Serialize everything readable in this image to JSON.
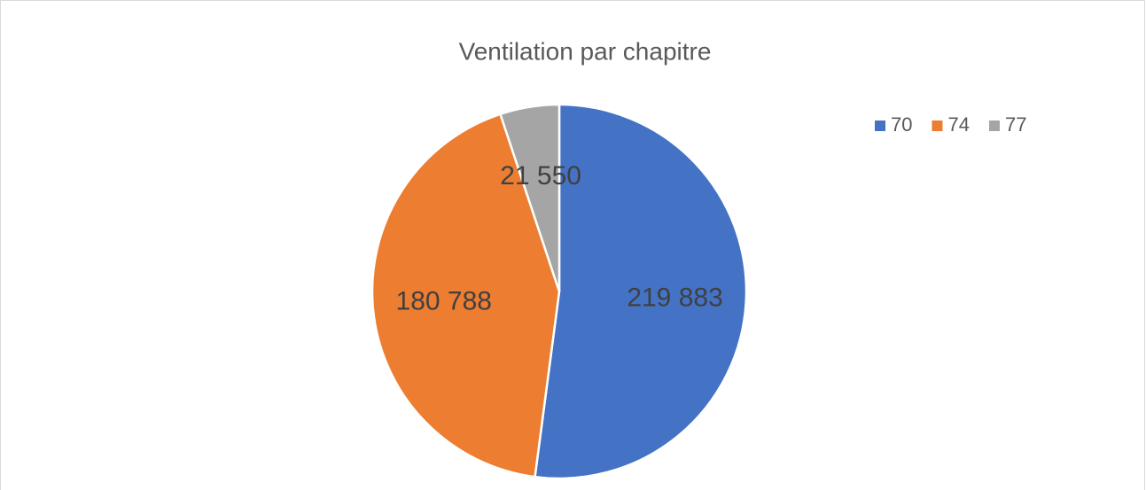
{
  "chart_data": {
    "type": "pie",
    "title": "Ventilation par chapitre",
    "categories": [
      "70",
      "74",
      "77"
    ],
    "values": [
      219883,
      180788,
      21550
    ],
    "value_labels": [
      "219 883",
      "180 788",
      "21 550"
    ],
    "colors": [
      "#4472c4",
      "#ed7d31",
      "#a5a5a5"
    ],
    "legend": "right"
  }
}
